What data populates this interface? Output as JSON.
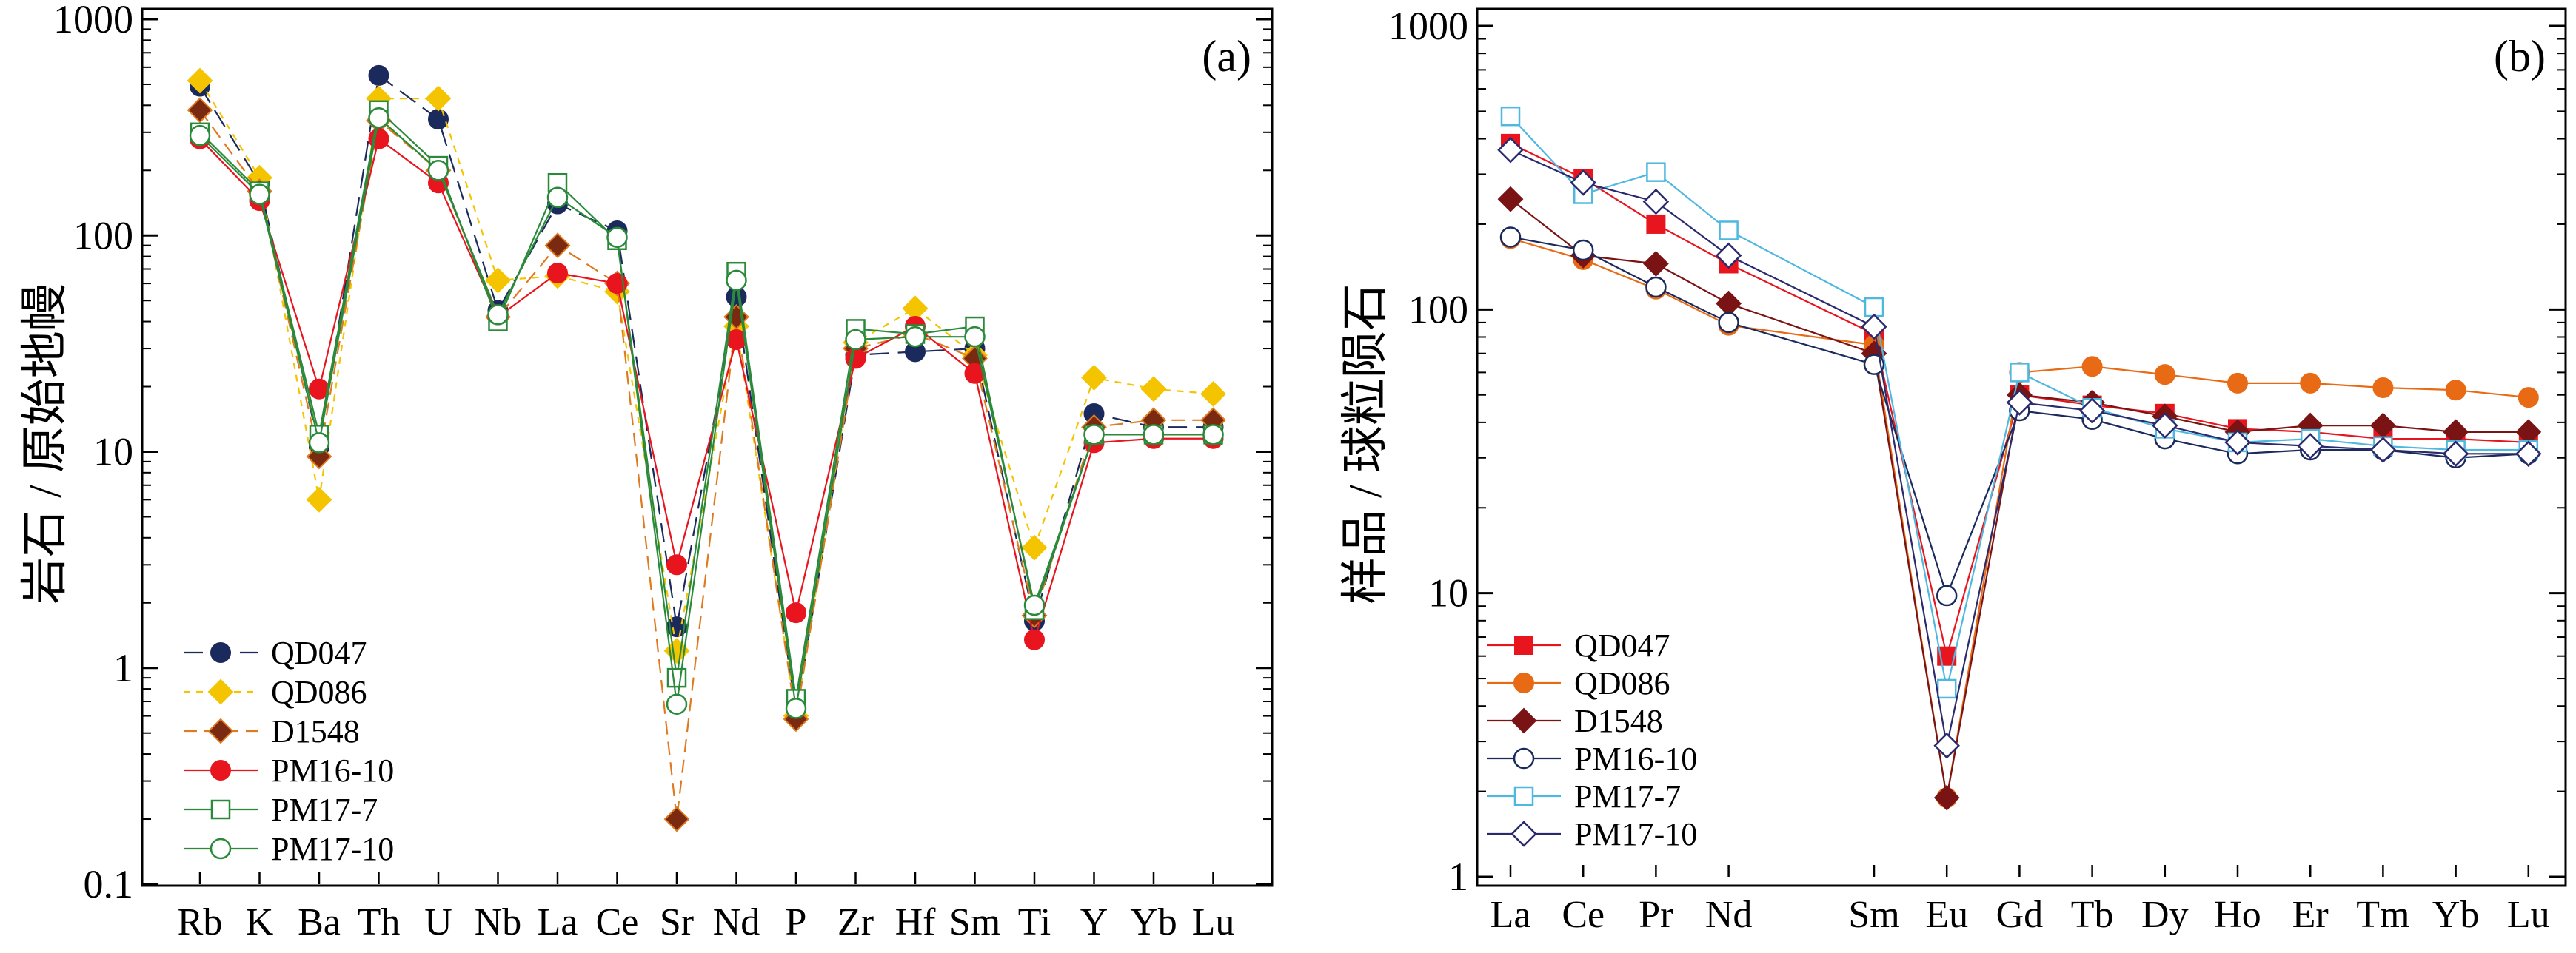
{
  "chart_data": [
    {
      "type": "line",
      "panel_label": "(a)",
      "ylabel": "岩石 / 原始地幔",
      "yscale": "log",
      "ylim": [
        0.1,
        1000
      ],
      "yticks": [
        "0.1",
        "1",
        "10",
        "100",
        "1000"
      ],
      "categories": [
        "Rb",
        "K",
        "Ba",
        "Th",
        "U",
        "Nb",
        "La",
        "Ce",
        "Sr",
        "Nd",
        "P",
        "Zr",
        "Hf",
        "Sm",
        "Ti",
        "Y",
        "Yb",
        "Lu"
      ],
      "legend_position": "bottom-left",
      "series": [
        {
          "name": "QD047",
          "color": "#1b2a5c",
          "marker": "circle-filled",
          "dash": "long",
          "values": [
            490,
            175,
            10.5,
            550,
            345,
            45,
            140,
            105,
            1.55,
            52,
            0.62,
            28,
            29,
            30,
            1.65,
            15,
            13,
            13
          ]
        },
        {
          "name": "QD086",
          "color": "#f5c400",
          "marker": "diamond-filled",
          "dash": "short",
          "values": [
            520,
            185,
            6,
            430,
            430,
            62,
            65,
            55,
            1.2,
            38,
            0.6,
            32,
            46,
            28,
            3.6,
            22,
            19.5,
            18.5
          ]
        },
        {
          "name": "D1548",
          "color": "#e07a1f",
          "fill": "#7a2a10",
          "marker": "diamond-filled",
          "dash": "mid",
          "values": [
            380,
            160,
            9.5,
            340,
            200,
            42,
            90,
            60,
            0.2,
            42,
            0.58,
            30,
            35,
            27,
            1.75,
            13,
            14,
            14
          ]
        },
        {
          "name": "PM16-10",
          "color": "#e8141e",
          "marker": "circle-filled",
          "dash": "solid",
          "values": [
            280,
            145,
            19.5,
            280,
            175,
            42,
            67,
            60,
            3,
            33,
            1.8,
            27,
            38,
            23,
            1.35,
            11,
            11.5,
            11.5
          ]
        },
        {
          "name": "PM17-7",
          "color": "#2a8a3a",
          "marker": "square-open",
          "dash": "solid",
          "values": [
            300,
            160,
            12,
            380,
            210,
            40,
            175,
            95,
            0.9,
            68,
            0.72,
            37,
            35,
            38,
            1.85,
            12,
            12,
            12
          ]
        },
        {
          "name": "PM17-10",
          "color": "#2a8a3a",
          "marker": "circle-open",
          "dash": "solid",
          "values": [
            290,
            155,
            11,
            350,
            200,
            43,
            150,
            98,
            0.68,
            62,
            0.65,
            33,
            34,
            34,
            1.95,
            12,
            12,
            12
          ]
        }
      ]
    },
    {
      "type": "line",
      "panel_label": "(b)",
      "ylabel": "样品 / 球粒陨石",
      "yscale": "log",
      "ylim": [
        1,
        1000
      ],
      "yticks": [
        "1",
        "10",
        "100",
        "1000"
      ],
      "categories": [
        "La",
        "Ce",
        "Pr",
        "Nd",
        "Sm",
        "Eu",
        "Gd",
        "Tb",
        "Dy",
        "Ho",
        "Er",
        "Tm",
        "Yb",
        "Lu"
      ],
      "category_slots": [
        0,
        1,
        2,
        3,
        5,
        6,
        7,
        8,
        9,
        10,
        11,
        12,
        13,
        14
      ],
      "legend_position": "bottom-left",
      "series": [
        {
          "name": "QD047",
          "color": "#e8141e",
          "marker": "square-filled",
          "dash": "solid",
          "values": [
            385,
            290,
            200,
            145,
            82,
            6,
            50,
            46,
            43,
            38,
            37,
            35,
            35,
            34
          ]
        },
        {
          "name": "QD086",
          "color": "#e86a14",
          "marker": "circle-filled",
          "dash": "solid",
          "values": [
            178,
            150,
            118,
            88,
            75,
            1.9,
            60,
            63,
            59,
            55,
            55,
            53,
            52,
            49
          ]
        },
        {
          "name": "D1548",
          "color": "#7a1414",
          "marker": "diamond-filled",
          "dash": "solid",
          "values": [
            245,
            155,
            145,
            105,
            70,
            1.9,
            50,
            47,
            42,
            37,
            39,
            39,
            37,
            37
          ]
        },
        {
          "name": "PM16-10",
          "color": "#1b2a5c",
          "marker": "circle-open",
          "dash": "solid",
          "values": [
            180,
            162,
            120,
            90,
            64,
            9.8,
            44,
            41,
            35,
            31,
            32,
            32,
            30,
            31
          ]
        },
        {
          "name": "PM17-7",
          "color": "#4fb8e0",
          "marker": "square-open",
          "dash": "solid",
          "values": [
            480,
            255,
            305,
            190,
            102,
            4.6,
            60,
            45,
            38,
            34,
            35,
            33,
            32,
            32
          ]
        },
        {
          "name": "PM17-10",
          "color": "#2a2a6c",
          "marker": "diamond-open",
          "dash": "solid",
          "values": [
            365,
            280,
            240,
            155,
            87,
            2.9,
            47,
            44,
            39,
            34,
            33,
            32,
            31,
            31
          ]
        }
      ]
    }
  ]
}
